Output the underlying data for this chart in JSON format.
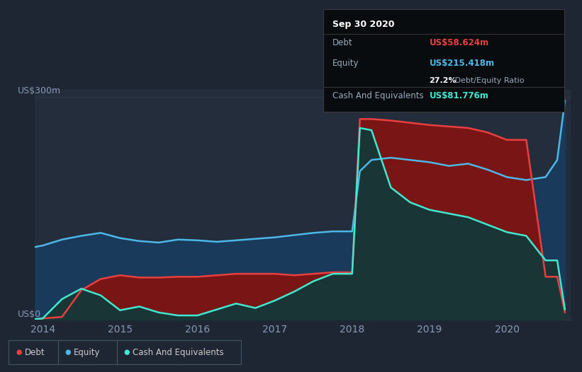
{
  "bg_color": "#1e2533",
  "plot_bg_color": "#242d3c",
  "debt_color": "#e84040",
  "equity_color": "#4db8e8",
  "cash_color": "#40e8d0",
  "debt_fill_color": "#7a1515",
  "equity_fill_color": "#1a3a5c",
  "cash_fill_color": "#1a3535",
  "tooltip_bg": "#090c0f",
  "tooltip_border": "#3a3a3a",
  "tooltip_title": "Sep 30 2020",
  "tooltip_debt_label": "Debt",
  "tooltip_debt_value": "US$58.624m",
  "tooltip_equity_label": "Equity",
  "tooltip_equity_value": "US$215.418m",
  "tooltip_ratio_bold": "27.2%",
  "tooltip_ratio_rest": " Debt/Equity Ratio",
  "tooltip_cash_label": "Cash And Equivalents",
  "tooltip_cash_value": "US$81.776m",
  "y_label_top": "US$300m",
  "y_label_bottom": "US$0",
  "x_ticks": [
    "2014",
    "2015",
    "2016",
    "2017",
    "2018",
    "2019",
    "2020"
  ],
  "time_points": [
    2013.9,
    2014.0,
    2014.25,
    2014.5,
    2014.75,
    2015.0,
    2015.25,
    2015.5,
    2015.75,
    2016.0,
    2016.25,
    2016.5,
    2016.75,
    2017.0,
    2017.25,
    2017.5,
    2017.75,
    2018.0,
    2018.1,
    2018.25,
    2018.5,
    2018.75,
    2019.0,
    2019.25,
    2019.5,
    2019.75,
    2020.0,
    2020.25,
    2020.5,
    2020.65,
    2020.75
  ],
  "debt": [
    1,
    2,
    4,
    40,
    55,
    60,
    57,
    57,
    58,
    58,
    60,
    62,
    62,
    62,
    60,
    62,
    64,
    64,
    270,
    270,
    268,
    265,
    262,
    260,
    258,
    252,
    242,
    242,
    58,
    58,
    10
  ],
  "equity": [
    98,
    100,
    108,
    113,
    117,
    110,
    106,
    104,
    108,
    107,
    105,
    107,
    109,
    111,
    114,
    117,
    119,
    119,
    200,
    215,
    218,
    215,
    212,
    207,
    210,
    202,
    192,
    188,
    192,
    215,
    295
  ],
  "cash": [
    1,
    2,
    28,
    42,
    33,
    13,
    18,
    10,
    6,
    6,
    14,
    22,
    16,
    26,
    38,
    52,
    62,
    62,
    258,
    255,
    178,
    158,
    148,
    143,
    138,
    128,
    118,
    113,
    80,
    80,
    14
  ]
}
